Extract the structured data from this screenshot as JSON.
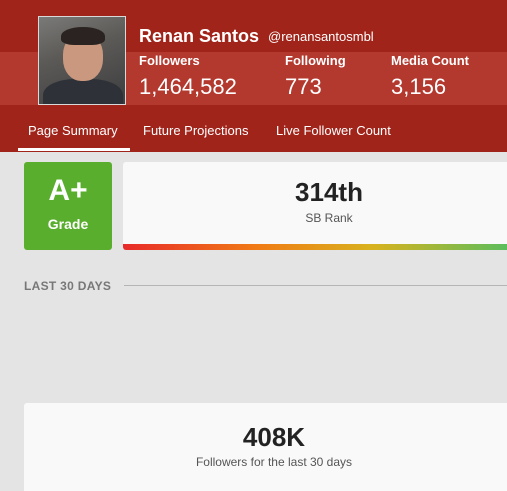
{
  "profile": {
    "name": "Renan Santos",
    "handle": "@renansantosmbl",
    "stats": [
      {
        "label": "Followers",
        "value": "1,464,582"
      },
      {
        "label": "Following",
        "value": "773"
      },
      {
        "label": "Media Count",
        "value": "3,156"
      }
    ]
  },
  "tabs": [
    "Page Summary",
    "Future Projections",
    "Live Follower Count"
  ],
  "grade": {
    "value": "A+",
    "label": "Grade"
  },
  "rank": {
    "value": "314th",
    "label": "SB Rank"
  },
  "section": {
    "title": "LAST 30 DAYS"
  },
  "summary": {
    "value": "408K",
    "label": "Followers for the last 30 days"
  }
}
